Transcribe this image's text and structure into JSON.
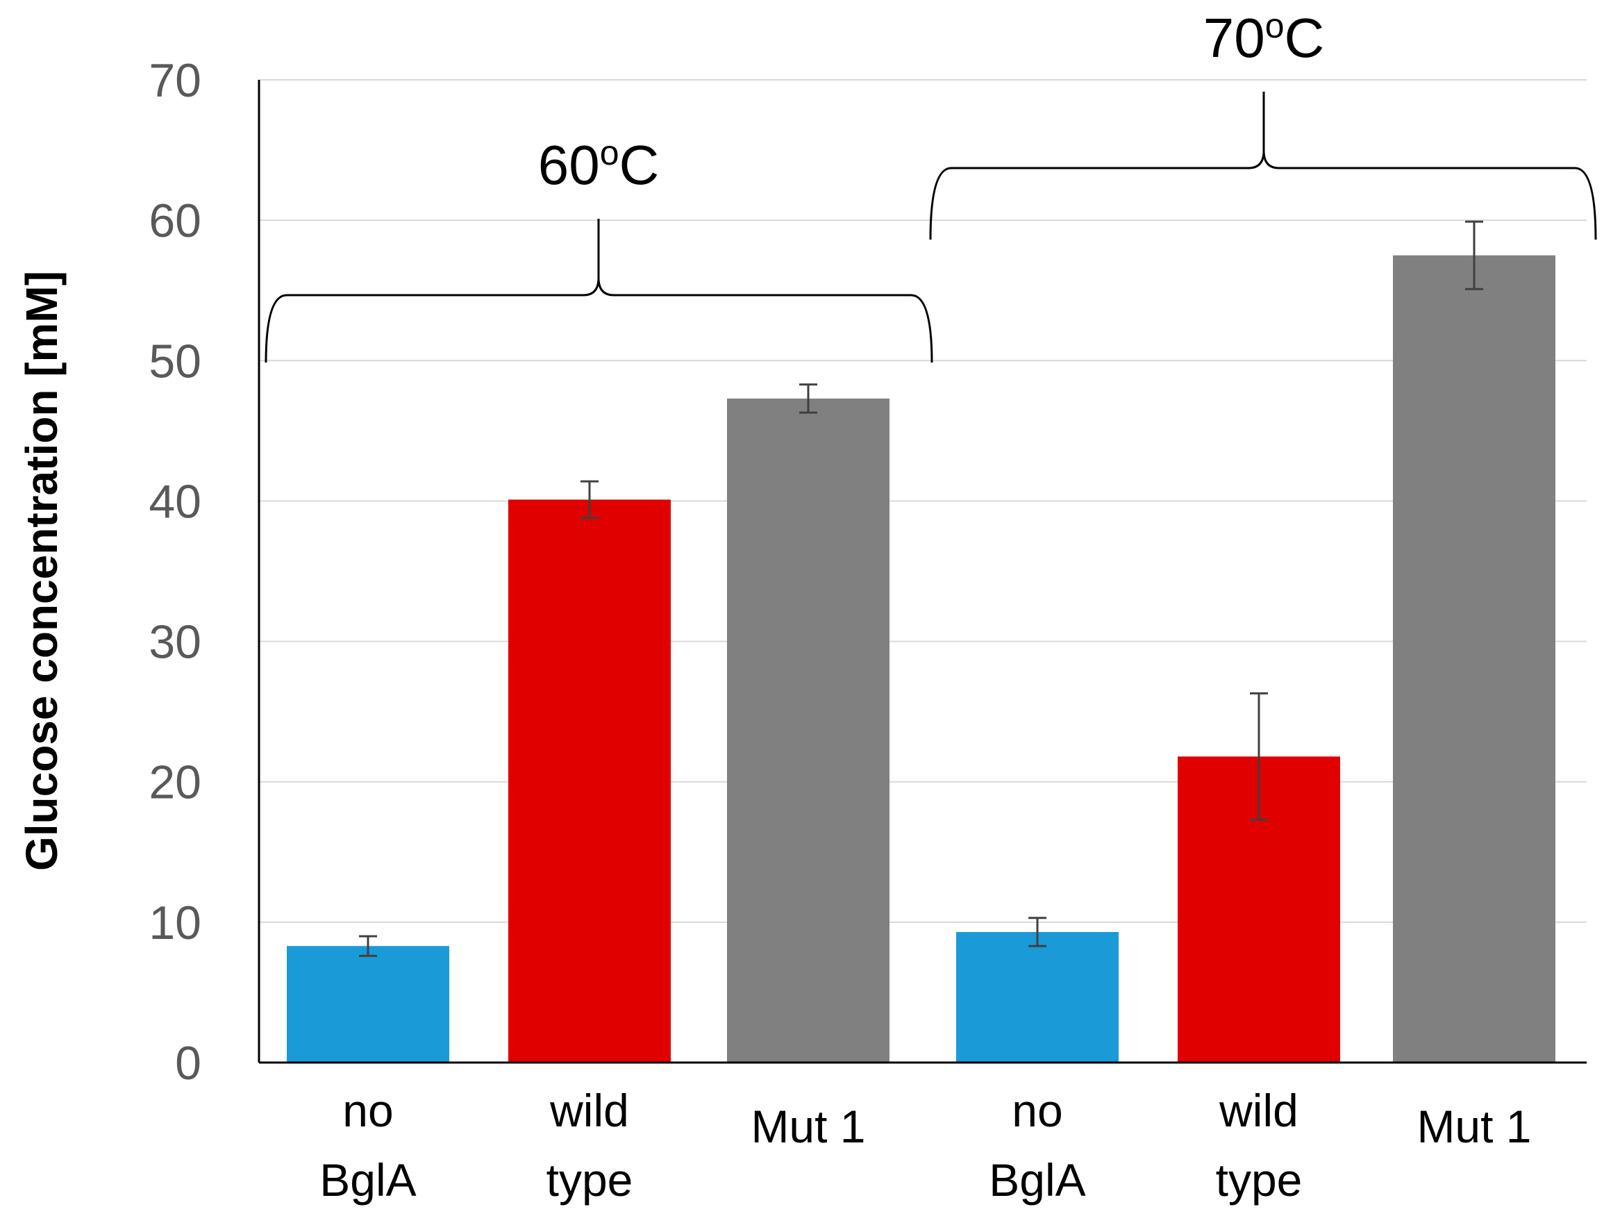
{
  "chart_data": {
    "type": "bar",
    "ylabel": "Glucose concentration [mM]",
    "ylim": [
      0,
      70
    ],
    "yticks": [
      "0",
      "10",
      "20",
      "30",
      "40",
      "50",
      "60",
      "70"
    ],
    "grid": true,
    "categories": [
      {
        "line1": "no",
        "line2": "BglA"
      },
      {
        "line1": "wild",
        "line2": "type"
      },
      {
        "line1": "Mut  1",
        "line2": ""
      },
      {
        "line1": "no",
        "line2": "BglA"
      },
      {
        "line1": "wild",
        "line2": "type"
      },
      {
        "line1": "Mut 1",
        "line2": ""
      }
    ],
    "values": [
      8.3,
      40.1,
      47.3,
      9.3,
      21.8,
      57.5
    ],
    "errors": [
      0.7,
      1.3,
      1.0,
      1.0,
      4.5,
      2.4
    ],
    "colors": [
      "#1a9ad6",
      "#e00000",
      "#808080",
      "#1a9ad6",
      "#e00000",
      "#808080"
    ],
    "groups": [
      {
        "label": "60",
        "label_sup": "o",
        "label_unit": "C"
      },
      {
        "label": "70",
        "label_sup": "o",
        "label_unit": "C"
      }
    ]
  }
}
